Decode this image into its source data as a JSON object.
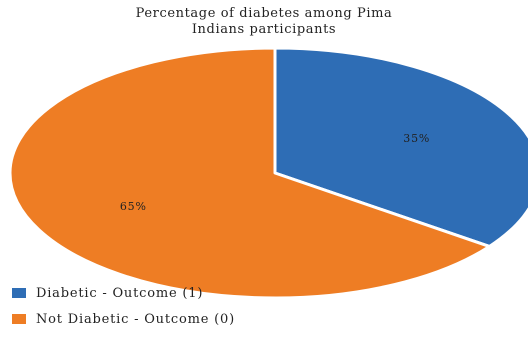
{
  "chart_data": {
    "type": "pie",
    "title_lines": [
      "Percentage of diabetes among Pima",
      "Indians participants"
    ],
    "slices": [
      {
        "label": "Diabetic - Outcome (1)",
        "value": 35,
        "display": "35%",
        "color": "#2E6DB5"
      },
      {
        "label": "Not Diabetic - Outcome (0)",
        "value": 65,
        "display": "65%",
        "color": "#EE7D24"
      }
    ],
    "legend_position": "bottom-left"
  }
}
